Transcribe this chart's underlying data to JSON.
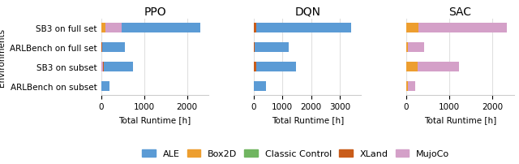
{
  "algorithms": [
    "PPO",
    "DQN",
    "SAC"
  ],
  "categories": [
    "SB3 on full set",
    "ARLBench on full set",
    "SB3 on subset",
    "ARLBench on subset"
  ],
  "environments": [
    "Box2D",
    "MujoCo",
    "XLand",
    "Classic Control",
    "ALE"
  ],
  "colors": {
    "ALE": "#5b9bd5",
    "Box2D": "#ed9e2f",
    "Classic Control": "#70b560",
    "XLand": "#c95c1a",
    "MujoCo": "#d4a0c8"
  },
  "data": {
    "PPO": {
      "SB3 on full set": {
        "ALE": 1820,
        "Box2D": 100,
        "Classic Control": 0,
        "XLand": 0,
        "MujoCo": 380
      },
      "ARLBench on full set": {
        "ALE": 520,
        "Box2D": 0,
        "Classic Control": 0,
        "XLand": 25,
        "MujoCo": 0
      },
      "SB3 on subset": {
        "ALE": 670,
        "Box2D": 0,
        "Classic Control": 0,
        "XLand": 25,
        "MujoCo": 40
      },
      "ARLBench on subset": {
        "ALE": 195,
        "Box2D": 0,
        "Classic Control": 0,
        "XLand": 0,
        "MujoCo": 0
      }
    },
    "DQN": {
      "SB3 on full set": {
        "ALE": 3300,
        "Box2D": 0,
        "Classic Control": 0,
        "XLand": 100,
        "MujoCo": 0
      },
      "ARLBench on full set": {
        "ALE": 1200,
        "Box2D": 0,
        "Classic Control": 0,
        "XLand": 30,
        "MujoCo": 0
      },
      "SB3 on subset": {
        "ALE": 1380,
        "Box2D": 0,
        "Classic Control": 0,
        "XLand": 100,
        "MujoCo": 0
      },
      "ARLBench on subset": {
        "ALE": 430,
        "Box2D": 0,
        "Classic Control": 0,
        "XLand": 0,
        "MujoCo": 0
      }
    },
    "SAC": {
      "SB3 on full set": {
        "ALE": 0,
        "Box2D": 280,
        "Classic Control": 0,
        "XLand": 0,
        "MujoCo": 2050
      },
      "ARLBench on full set": {
        "ALE": 0,
        "Box2D": 28,
        "Classic Control": 0,
        "XLand": 0,
        "MujoCo": 380
      },
      "SB3 on subset": {
        "ALE": 0,
        "Box2D": 270,
        "Classic Control": 0,
        "XLand": 0,
        "MujoCo": 960
      },
      "ARLBench on subset": {
        "ALE": 0,
        "Box2D": 28,
        "Classic Control": 0,
        "XLand": 0,
        "MujoCo": 185
      }
    }
  },
  "xlim": {
    "PPO": [
      0,
      2500
    ],
    "DQN": [
      0,
      3750
    ],
    "SAC": [
      0,
      2500
    ]
  },
  "xticks": {
    "PPO": [
      0,
      1000,
      2000
    ],
    "DQN": [
      0,
      1000,
      2000,
      3000
    ],
    "SAC": [
      0,
      1000,
      2000
    ]
  },
  "xlabel": "Total Runtime [h]",
  "ylabel": "Environments",
  "title_fontsize": 10,
  "label_fontsize": 7.5,
  "tick_fontsize": 7.5,
  "legend_fontsize": 8,
  "bar_height": 0.5
}
